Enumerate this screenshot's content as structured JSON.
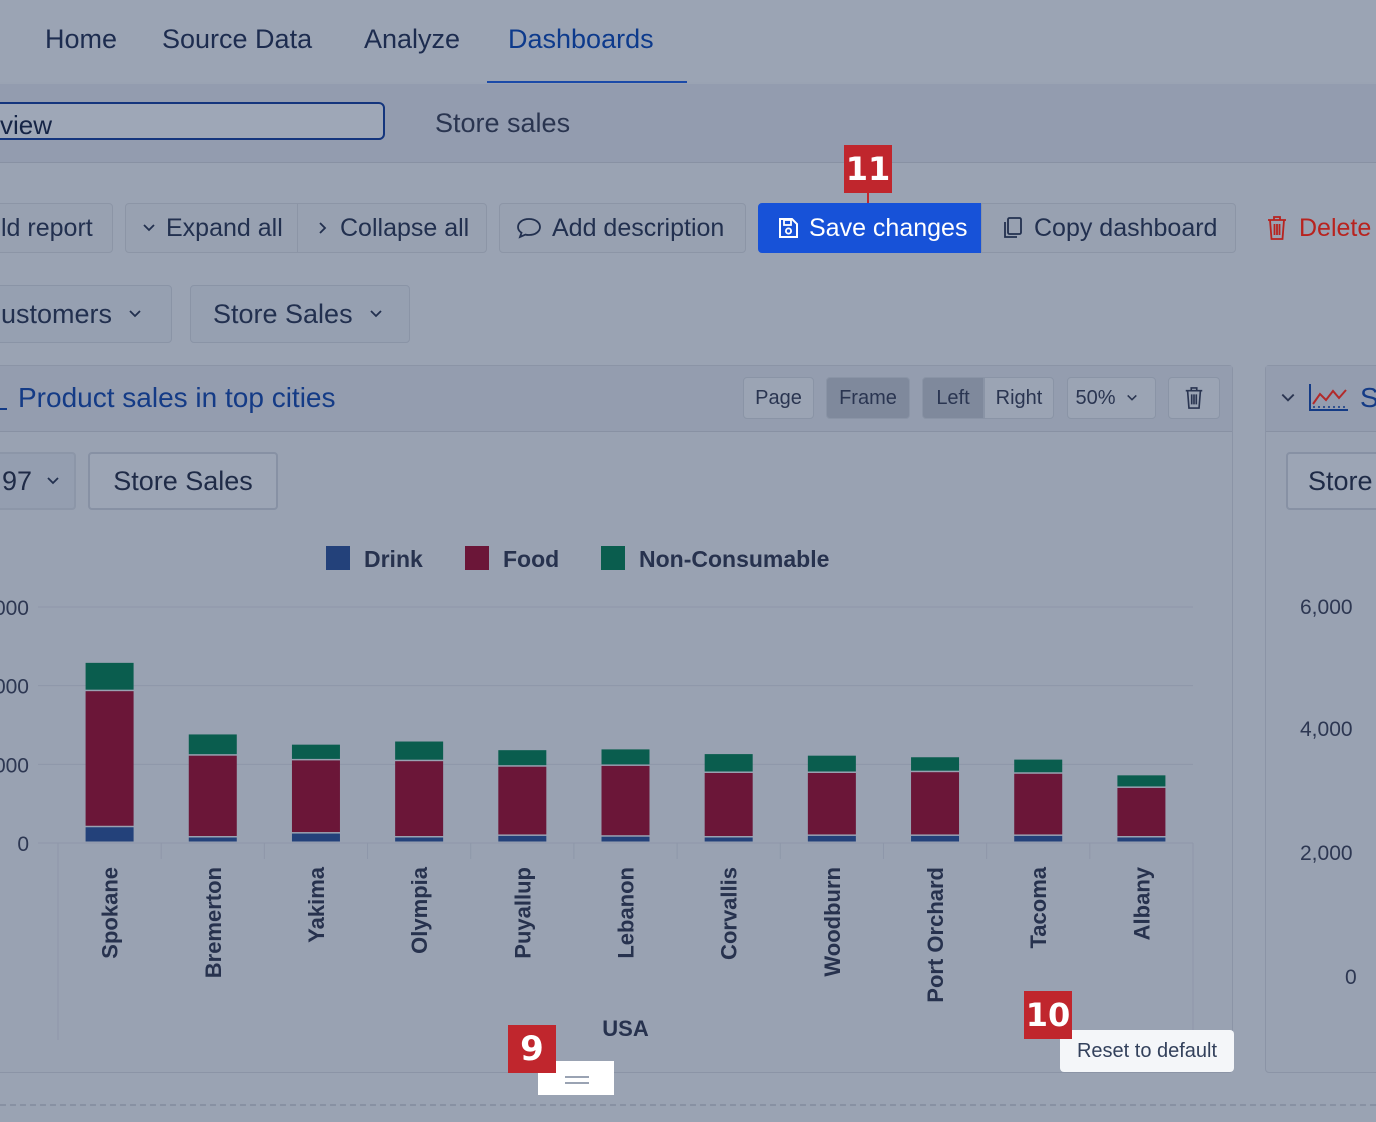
{
  "nav": {
    "tabs": [
      "Home",
      "Source Data",
      "Analyze",
      "Dashboards"
    ],
    "active": "Dashboards"
  },
  "dashboard": {
    "name_value": "view",
    "tab": "Store sales"
  },
  "toolbar": {
    "add_report": "ld report",
    "expand_all": "Expand all",
    "collapse_all": "Collapse all",
    "add_description": "Add description",
    "save_changes": "Save changes",
    "copy_dashboard": "Copy dashboard",
    "delete": "Delete"
  },
  "filters": {
    "customers": "ustomers",
    "store_sales": "Store Sales"
  },
  "report": {
    "title": "Product sales in top cities",
    "page_label": "Page",
    "frame_label": "Frame",
    "left_label": "Left",
    "right_label": "Right",
    "zoom": "50%",
    "year_filter": "97",
    "measure_button": "Store Sales",
    "reset_tooltip": "Reset to default"
  },
  "report2": {
    "title_fragment": "S",
    "measure_button": "Store",
    "yticks": [
      "6,000",
      "4,000",
      "2,000",
      "0"
    ]
  },
  "annotations": {
    "badge_9": "9",
    "badge_10": "10",
    "badge_11": "11"
  },
  "colors": {
    "drink": "#23417a",
    "food": "#6b1638",
    "non_consumable": "#0a5d4e",
    "save_button": "#1752d8",
    "badge": "#c0262d"
  },
  "chart_data": {
    "type": "bar",
    "stacked": true,
    "categories": [
      "Spokane",
      "Bremerton",
      "Yakima",
      "Olympia",
      "Puyallup",
      "Lebanon",
      "Corvallis",
      "Woodburn",
      "Port Orchard",
      "Tacoma",
      "Albany"
    ],
    "series": [
      {
        "name": "Drink",
        "values": [
          200,
          70,
          120,
          70,
          90,
          80,
          70,
          90,
          90,
          90,
          70
        ]
      },
      {
        "name": "Food",
        "values": [
          1730,
          1040,
          930,
          970,
          880,
          900,
          820,
          800,
          810,
          790,
          630
        ]
      },
      {
        "name": "Non-Consumable",
        "values": [
          360,
          270,
          200,
          250,
          210,
          210,
          240,
          220,
          190,
          180,
          160
        ]
      }
    ],
    "xlabel": "USA",
    "ytick_labels": [
      "0",
      "000",
      "000",
      "000"
    ],
    "ylim": [
      0,
      3000
    ],
    "legend": "top-center",
    "grid": true
  }
}
